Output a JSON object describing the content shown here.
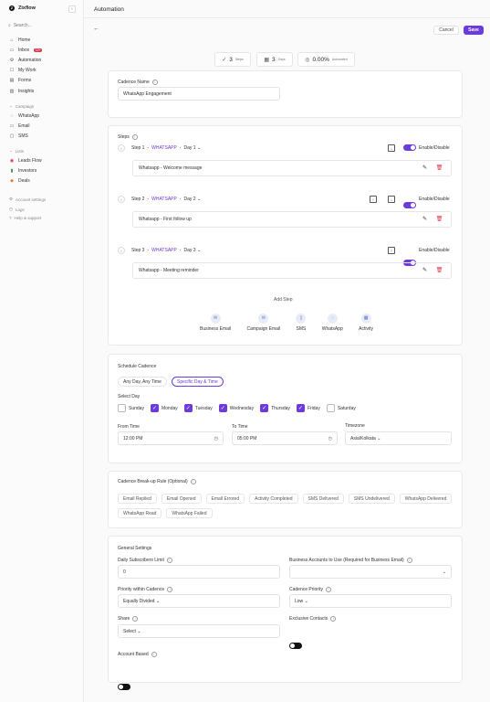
{
  "app": {
    "name": "Zixflow",
    "page_title": "Automation"
  },
  "sidebar": {
    "search_label": "Search...",
    "nav": [
      {
        "label": "Home",
        "icon": "home-icon",
        "glyph": "⌂"
      },
      {
        "label": "Inbox",
        "icon": "inbox-icon",
        "glyph": "▭",
        "badge": "12+"
      },
      {
        "label": "Automation",
        "icon": "automation-icon",
        "glyph": "⚙"
      },
      {
        "label": "My Work",
        "icon": "my-work-icon",
        "glyph": "☐"
      },
      {
        "label": "Forms",
        "icon": "forms-icon",
        "glyph": "▤"
      },
      {
        "label": "Insights",
        "icon": "insights-icon",
        "glyph": "▥"
      }
    ],
    "campaign_header": "Campaign",
    "campaign": [
      {
        "label": "WhatsApp",
        "icon": "whatsapp-icon",
        "glyph": "◌"
      },
      {
        "label": "Email",
        "icon": "email-icon",
        "glyph": "▭"
      },
      {
        "label": "SMS",
        "icon": "sms-icon",
        "glyph": "▢"
      }
    ],
    "lists_header": "Lists",
    "lists": [
      {
        "label": "Leads Flow",
        "icon": "leads-flow-icon",
        "glyph": "◉",
        "color": "#e2334b"
      },
      {
        "label": "Investors",
        "icon": "investors-icon",
        "glyph": "▮",
        "color": "#2e9b4f"
      },
      {
        "label": "Deals",
        "icon": "deals-icon",
        "glyph": "◆",
        "color": "#e87d2a"
      }
    ],
    "footer": [
      {
        "label": "Account settings",
        "icon": "settings-icon",
        "glyph": "⚙"
      },
      {
        "label": "Logs",
        "icon": "logs-icon",
        "glyph": "◷"
      },
      {
        "label": "Help & support",
        "icon": "help-icon",
        "glyph": "?"
      }
    ]
  },
  "toolbar": {
    "cancel_label": "Cancel",
    "save_label": "Save"
  },
  "stats": [
    {
      "value": "3",
      "unit": "Steps",
      "icon": "steps-icon",
      "glyph": "✓"
    },
    {
      "value": "3",
      "unit": "Days",
      "icon": "calendar-icon",
      "glyph": "▦"
    },
    {
      "value": "0.00%",
      "unit": "Automated",
      "icon": "automated-icon",
      "glyph": "◎"
    }
  ],
  "cadence": {
    "label": "Cadence Name",
    "value": "WhatsApp Engagement"
  },
  "steps": {
    "label": "Steps",
    "toggle_label": "Enable/Disable",
    "items": [
      {
        "step": "Step 1",
        "channel": "WHATSAPP",
        "day": "Day 1",
        "message": "Whatsapp - Welcome message",
        "enabled": true
      },
      {
        "step": "Step 2",
        "channel": "WHATSAPP",
        "day": "Day 2",
        "message": "Whatsapp - First follow up",
        "enabled": true
      },
      {
        "step": "Step 3",
        "channel": "WHATSAPP",
        "day": "Day 3",
        "message": "Whatsapp - Meeting reminder",
        "enabled": true
      }
    ],
    "add_step_label": "Add Step",
    "channels": [
      {
        "label": "Business Email",
        "icon": "business-email-icon",
        "glyph": "✉"
      },
      {
        "label": "Campaign Email",
        "icon": "campaign-email-icon",
        "glyph": "✉"
      },
      {
        "label": "SMS",
        "icon": "sms-icon",
        "glyph": "▯"
      },
      {
        "label": "WhatsApp",
        "icon": "whatsapp-icon",
        "glyph": "◌"
      },
      {
        "label": "Activity",
        "icon": "activity-icon",
        "glyph": "▦"
      }
    ]
  },
  "schedule": {
    "title": "Schedule Cadence",
    "modes": [
      "Any Day, Any Time",
      "Specific Day & Time"
    ],
    "active_mode": "Specific Day & Time",
    "select_day_label": "Select Day",
    "days": [
      {
        "label": "Sunday",
        "checked": false
      },
      {
        "label": "Monday",
        "checked": true
      },
      {
        "label": "Tuesday",
        "checked": true
      },
      {
        "label": "Wednesday",
        "checked": true
      },
      {
        "label": "Thursday",
        "checked": true
      },
      {
        "label": "Friday",
        "checked": true
      },
      {
        "label": "Saturday",
        "checked": false
      }
    ],
    "from_label": "From Time",
    "from_value": "12:00 PM",
    "to_label": "To Time",
    "to_value": "05:00 PM",
    "tz_label": "Timezone",
    "tz_value": "Asia/Kolkata"
  },
  "breakup": {
    "title": "Cadence Break-up Rule (Optional)",
    "rules_row1": [
      "Email Replied",
      "Email Opened",
      "Email Errored",
      "Activity Completed",
      "SMS Delivered",
      "SMS Undelivered",
      "WhatsApp Delivered"
    ],
    "rules_row2": [
      "WhatsApp Read",
      "WhatsApp Failed"
    ]
  },
  "general": {
    "title": "General Settings",
    "daily_limit_label": "Daily Subscribers Limit",
    "daily_limit_value": "0",
    "business_accounts_label": "Business Accounts to Use (Required for Business Email)",
    "priority_label": "Priority within Cadence",
    "priority_value": "Equally Divided",
    "cadence_priority_label": "Cadence Priority",
    "cadence_priority_value": "Low",
    "share_label": "Share",
    "share_value": "Select",
    "exclusive_label": "Exclusive Contacts",
    "exclusive_on": false,
    "account_based_label": "Account Based",
    "account_based_on": false
  },
  "colors": {
    "accent": "#6b3bdb",
    "danger": "#e2334b"
  }
}
